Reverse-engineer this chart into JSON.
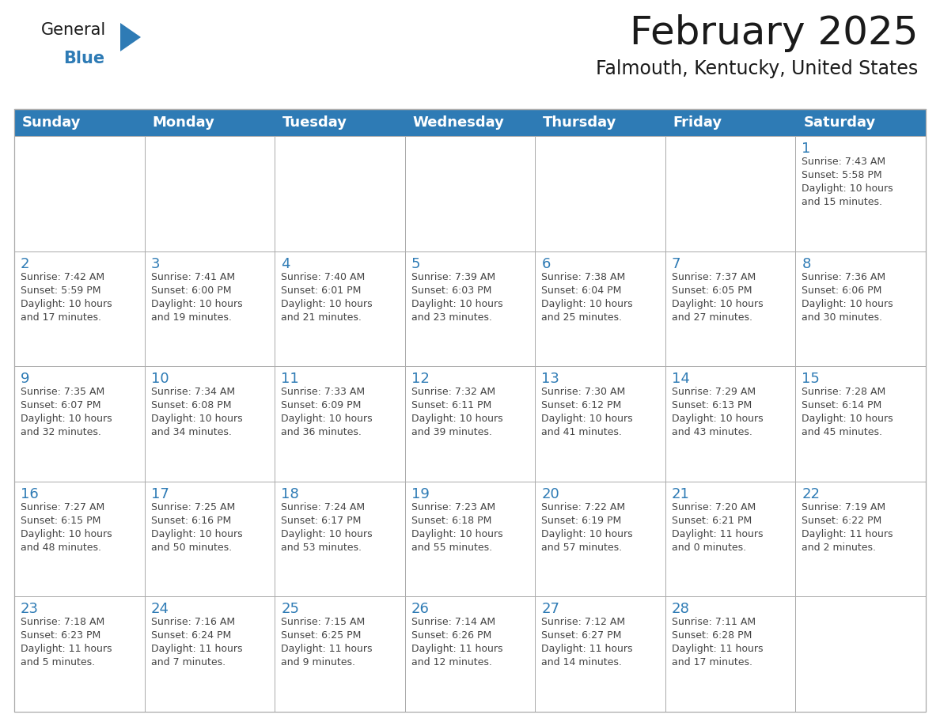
{
  "title": "February 2025",
  "subtitle": "Falmouth, Kentucky, United States",
  "days_of_week": [
    "Sunday",
    "Monday",
    "Tuesday",
    "Wednesday",
    "Thursday",
    "Friday",
    "Saturday"
  ],
  "header_bg": "#2E7BB5",
  "header_text": "#FFFFFF",
  "cell_bg": "#FFFFFF",
  "cell_border": "#AAAAAA",
  "day_num_color": "#2E7BB5",
  "info_color": "#444444",
  "title_color": "#1a1a1a",
  "subtitle_color": "#1a1a1a",
  "logo_general_color": "#1a1a1a",
  "logo_blue_color": "#2E7BB5",
  "background_color": "#FFFFFF",
  "calendar_data": [
    [
      null,
      null,
      null,
      null,
      null,
      null,
      {
        "day": 1,
        "sunrise": "7:43 AM",
        "sunset": "5:58 PM",
        "daylight": "10 hours\nand 15 minutes."
      }
    ],
    [
      {
        "day": 2,
        "sunrise": "7:42 AM",
        "sunset": "5:59 PM",
        "daylight": "10 hours\nand 17 minutes."
      },
      {
        "day": 3,
        "sunrise": "7:41 AM",
        "sunset": "6:00 PM",
        "daylight": "10 hours\nand 19 minutes."
      },
      {
        "day": 4,
        "sunrise": "7:40 AM",
        "sunset": "6:01 PM",
        "daylight": "10 hours\nand 21 minutes."
      },
      {
        "day": 5,
        "sunrise": "7:39 AM",
        "sunset": "6:03 PM",
        "daylight": "10 hours\nand 23 minutes."
      },
      {
        "day": 6,
        "sunrise": "7:38 AM",
        "sunset": "6:04 PM",
        "daylight": "10 hours\nand 25 minutes."
      },
      {
        "day": 7,
        "sunrise": "7:37 AM",
        "sunset": "6:05 PM",
        "daylight": "10 hours\nand 27 minutes."
      },
      {
        "day": 8,
        "sunrise": "7:36 AM",
        "sunset": "6:06 PM",
        "daylight": "10 hours\nand 30 minutes."
      }
    ],
    [
      {
        "day": 9,
        "sunrise": "7:35 AM",
        "sunset": "6:07 PM",
        "daylight": "10 hours\nand 32 minutes."
      },
      {
        "day": 10,
        "sunrise": "7:34 AM",
        "sunset": "6:08 PM",
        "daylight": "10 hours\nand 34 minutes."
      },
      {
        "day": 11,
        "sunrise": "7:33 AM",
        "sunset": "6:09 PM",
        "daylight": "10 hours\nand 36 minutes."
      },
      {
        "day": 12,
        "sunrise": "7:32 AM",
        "sunset": "6:11 PM",
        "daylight": "10 hours\nand 39 minutes."
      },
      {
        "day": 13,
        "sunrise": "7:30 AM",
        "sunset": "6:12 PM",
        "daylight": "10 hours\nand 41 minutes."
      },
      {
        "day": 14,
        "sunrise": "7:29 AM",
        "sunset": "6:13 PM",
        "daylight": "10 hours\nand 43 minutes."
      },
      {
        "day": 15,
        "sunrise": "7:28 AM",
        "sunset": "6:14 PM",
        "daylight": "10 hours\nand 45 minutes."
      }
    ],
    [
      {
        "day": 16,
        "sunrise": "7:27 AM",
        "sunset": "6:15 PM",
        "daylight": "10 hours\nand 48 minutes."
      },
      {
        "day": 17,
        "sunrise": "7:25 AM",
        "sunset": "6:16 PM",
        "daylight": "10 hours\nand 50 minutes."
      },
      {
        "day": 18,
        "sunrise": "7:24 AM",
        "sunset": "6:17 PM",
        "daylight": "10 hours\nand 53 minutes."
      },
      {
        "day": 19,
        "sunrise": "7:23 AM",
        "sunset": "6:18 PM",
        "daylight": "10 hours\nand 55 minutes."
      },
      {
        "day": 20,
        "sunrise": "7:22 AM",
        "sunset": "6:19 PM",
        "daylight": "10 hours\nand 57 minutes."
      },
      {
        "day": 21,
        "sunrise": "7:20 AM",
        "sunset": "6:21 PM",
        "daylight": "11 hours\nand 0 minutes."
      },
      {
        "day": 22,
        "sunrise": "7:19 AM",
        "sunset": "6:22 PM",
        "daylight": "11 hours\nand 2 minutes."
      }
    ],
    [
      {
        "day": 23,
        "sunrise": "7:18 AM",
        "sunset": "6:23 PM",
        "daylight": "11 hours\nand 5 minutes."
      },
      {
        "day": 24,
        "sunrise": "7:16 AM",
        "sunset": "6:24 PM",
        "daylight": "11 hours\nand 7 minutes."
      },
      {
        "day": 25,
        "sunrise": "7:15 AM",
        "sunset": "6:25 PM",
        "daylight": "11 hours\nand 9 minutes."
      },
      {
        "day": 26,
        "sunrise": "7:14 AM",
        "sunset": "6:26 PM",
        "daylight": "11 hours\nand 12 minutes."
      },
      {
        "day": 27,
        "sunrise": "7:12 AM",
        "sunset": "6:27 PM",
        "daylight": "11 hours\nand 14 minutes."
      },
      {
        "day": 28,
        "sunrise": "7:11 AM",
        "sunset": "6:28 PM",
        "daylight": "11 hours\nand 17 minutes."
      },
      null
    ]
  ]
}
